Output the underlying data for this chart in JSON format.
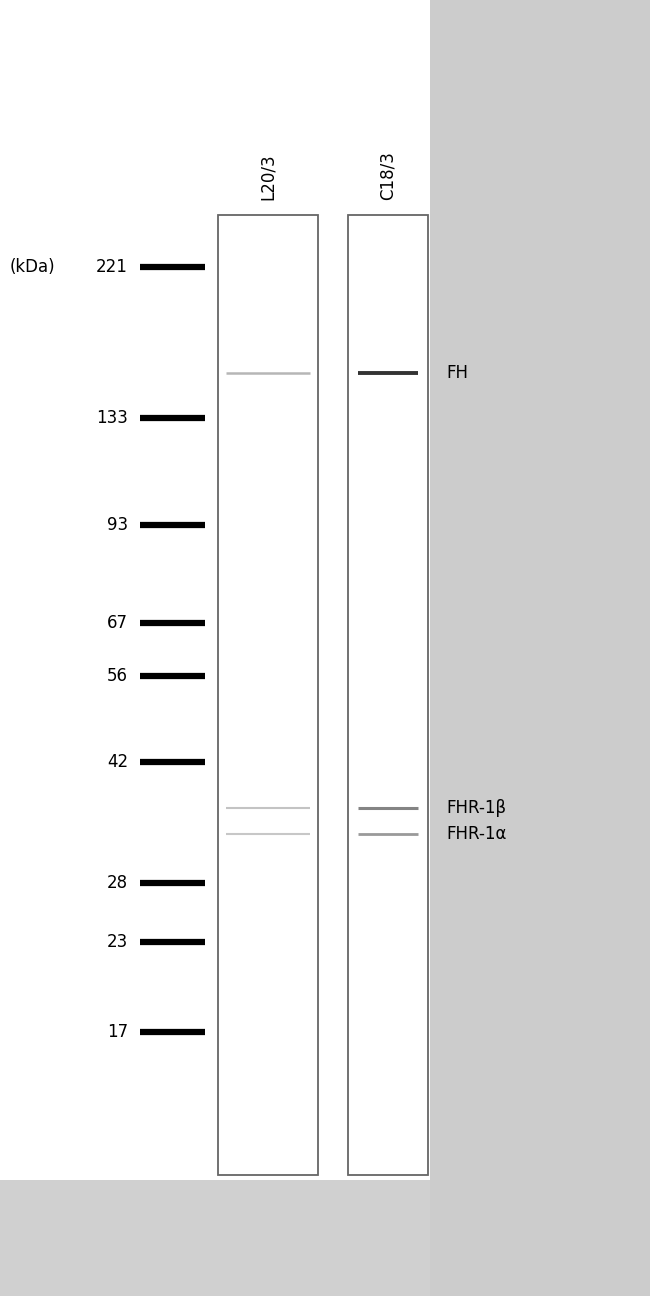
{
  "fig_bg": "#e8e8e8",
  "white_bg": "#ffffff",
  "gray_side_bg": "#cccccc",
  "gray_bottom_bg": "#d0d0d0",
  "kda_label": "(kDa)",
  "lane_labels": [
    "L20/3",
    "C18/3"
  ],
  "ladder_kdas": [
    221,
    133,
    93,
    67,
    56,
    42,
    28,
    23,
    17
  ],
  "lane1_bands": [
    {
      "kda": 155,
      "color": "#aaaaaa",
      "linewidth": 1.8,
      "alpha": 0.85
    },
    {
      "kda": 36,
      "color": "#aaaaaa",
      "linewidth": 1.5,
      "alpha": 0.7
    },
    {
      "kda": 33,
      "color": "#aaaaaa",
      "linewidth": 1.5,
      "alpha": 0.65
    }
  ],
  "lane2_bands": [
    {
      "kda": 155,
      "color": "#333333",
      "linewidth": 2.8,
      "alpha": 1.0
    },
    {
      "kda": 36,
      "color": "#777777",
      "linewidth": 2.2,
      "alpha": 0.9
    },
    {
      "kda": 33,
      "color": "#888888",
      "linewidth": 2.0,
      "alpha": 0.85
    }
  ],
  "band_annotations": [
    {
      "kda": 155,
      "text": "FH"
    },
    {
      "kda": 36,
      "text": "FHR-1β"
    },
    {
      "kda": 33,
      "text": "FHR-1α"
    }
  ],
  "annot_fontsize": 12,
  "kda_fontsize": 12,
  "label_fontsize": 12
}
